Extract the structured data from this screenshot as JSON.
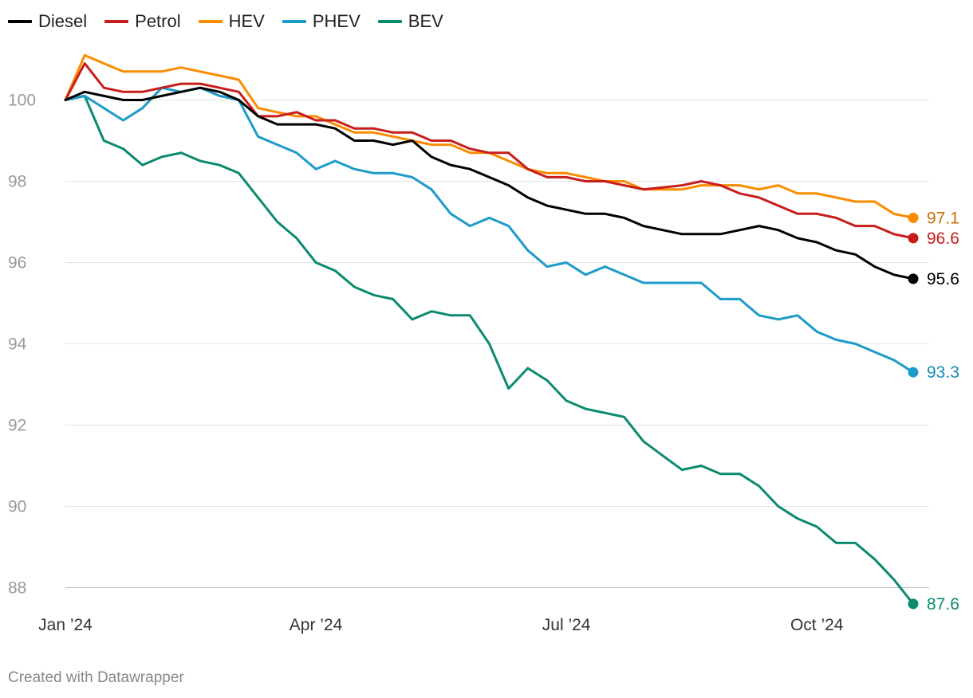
{
  "credit": "Created with Datawrapper",
  "chart_data": {
    "type": "line",
    "title": "",
    "xlabel": "",
    "ylabel": "",
    "ylim": [
      87.6,
      102
    ],
    "y_ticks": [
      88,
      90,
      92,
      94,
      96,
      98,
      100
    ],
    "x_ticks": [
      {
        "label": "Jan ’24",
        "index": 0
      },
      {
        "label": "Apr ’24",
        "index": 13
      },
      {
        "label": "Jul ’24",
        "index": 26
      },
      {
        "label": "Oct ’24",
        "index": 39
      }
    ],
    "x": [
      "2024-01-01",
      "2024-01-08",
      "2024-01-15",
      "2024-01-22",
      "2024-01-29",
      "2024-02-05",
      "2024-02-12",
      "2024-02-19",
      "2024-02-26",
      "2024-03-04",
      "2024-03-11",
      "2024-03-18",
      "2024-03-25",
      "2024-04-01",
      "2024-04-08",
      "2024-04-15",
      "2024-04-22",
      "2024-04-29",
      "2024-05-06",
      "2024-05-13",
      "2024-05-20",
      "2024-05-27",
      "2024-06-03",
      "2024-06-10",
      "2024-06-17",
      "2024-06-24",
      "2024-07-01",
      "2024-07-08",
      "2024-07-15",
      "2024-07-22",
      "2024-07-29",
      "2024-08-05",
      "2024-08-12",
      "2024-08-19",
      "2024-08-26",
      "2024-09-02",
      "2024-09-09",
      "2024-09-16",
      "2024-09-23",
      "2024-09-30",
      "2024-10-07",
      "2024-10-14",
      "2024-10-21",
      "2024-10-28",
      "2024-11-04"
    ],
    "series": [
      {
        "name": "Diesel",
        "color": "#000000",
        "values": [
          100,
          100.2,
          100.1,
          100.0,
          100.0,
          100.1,
          100.2,
          100.3,
          100.2,
          100.0,
          99.6,
          99.4,
          99.4,
          99.4,
          99.3,
          99.0,
          99.0,
          98.9,
          99.0,
          98.6,
          98.4,
          98.3,
          98.1,
          97.9,
          97.6,
          97.4,
          97.3,
          97.2,
          97.2,
          97.1,
          96.9,
          96.8,
          96.7,
          96.7,
          96.7,
          96.8,
          96.9,
          96.8,
          96.6,
          96.5,
          96.3,
          96.2,
          95.9,
          95.7,
          95.6
        ],
        "end_label": "95.6"
      },
      {
        "name": "Petrol",
        "color": "#c71e1d",
        "values": [
          100,
          100.9,
          100.3,
          100.2,
          100.2,
          100.3,
          100.4,
          100.4,
          100.3,
          100.2,
          99.6,
          99.6,
          99.7,
          99.5,
          99.5,
          99.3,
          99.3,
          99.2,
          99.2,
          99.0,
          99.0,
          98.8,
          98.7,
          98.7,
          98.3,
          98.1,
          98.1,
          98.0,
          98.0,
          97.9,
          97.8,
          97.85,
          97.9,
          98.0,
          97.9,
          97.7,
          97.6,
          97.4,
          97.2,
          97.2,
          97.1,
          96.9,
          96.9,
          96.7,
          96.6
        ],
        "end_label": "96.6"
      },
      {
        "name": "HEV",
        "color": "#fa8c00",
        "values": [
          100,
          101.1,
          100.9,
          100.7,
          100.7,
          100.7,
          100.8,
          100.7,
          100.6,
          100.5,
          99.8,
          99.7,
          99.6,
          99.6,
          99.4,
          99.2,
          99.2,
          99.1,
          99.0,
          98.9,
          98.9,
          98.7,
          98.7,
          98.5,
          98.3,
          98.2,
          98.2,
          98.1,
          98.0,
          98.0,
          97.8,
          97.8,
          97.8,
          97.9,
          97.9,
          97.9,
          97.8,
          97.9,
          97.7,
          97.7,
          97.6,
          97.5,
          97.5,
          97.2,
          97.1
        ],
        "end_label": "97.1"
      },
      {
        "name": "PHEV",
        "color": "#1d9bc9",
        "values": [
          100,
          100.1,
          99.8,
          99.5,
          99.8,
          100.3,
          100.2,
          100.3,
          100.1,
          100.0,
          99.1,
          98.9,
          98.7,
          98.3,
          98.5,
          98.3,
          98.2,
          98.2,
          98.1,
          97.8,
          97.2,
          96.9,
          97.1,
          96.9,
          96.3,
          95.9,
          96.0,
          95.7,
          95.9,
          95.7,
          95.5,
          95.5,
          95.5,
          95.5,
          95.1,
          95.1,
          94.7,
          94.6,
          94.7,
          94.3,
          94.1,
          94.0,
          93.8,
          93.6,
          93.3
        ],
        "end_label": "93.3"
      },
      {
        "name": "BEV",
        "color": "#0b8a6f",
        "values": [
          100,
          100.1,
          99.0,
          98.8,
          98.4,
          98.6,
          98.7,
          98.5,
          98.4,
          98.2,
          97.6,
          97.0,
          96.6,
          96.0,
          95.8,
          95.4,
          95.2,
          95.1,
          94.6,
          94.8,
          94.7,
          94.7,
          94.0,
          92.9,
          93.4,
          93.1,
          92.6,
          92.4,
          92.3,
          92.2,
          91.6,
          91.25,
          90.9,
          91.0,
          90.8,
          90.8,
          90.5,
          90.0,
          89.7,
          89.5,
          89.1,
          89.1,
          88.7,
          88.2,
          87.6
        ],
        "end_label": "87.6"
      }
    ],
    "end_label_colors": {
      "Diesel": "#000000",
      "Petrol": "#c71e1d",
      "HEV": "#c76f00",
      "PHEV": "#1a8ab5",
      "BEV": "#0b8a6f"
    },
    "grid": true,
    "legend": "top-left"
  }
}
